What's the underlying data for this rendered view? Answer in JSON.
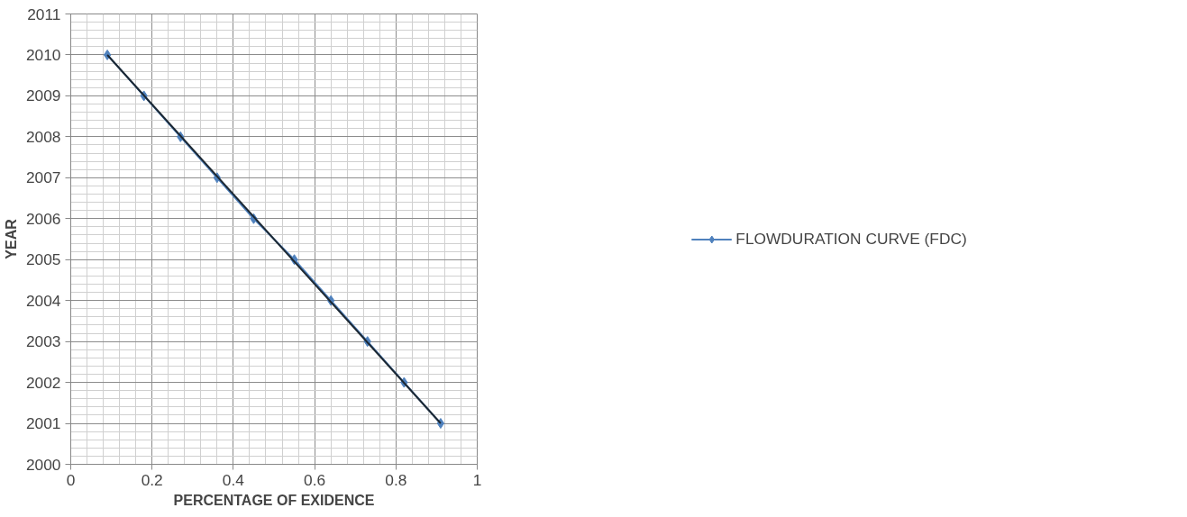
{
  "chart_data": {
    "type": "line",
    "xlabel": "PERCENTAGE OF EXIDENCE",
    "ylabel": "YEAR",
    "x": [
      0.09,
      0.18,
      0.27,
      0.36,
      0.45,
      0.55,
      0.64,
      0.73,
      0.82,
      0.91
    ],
    "series": [
      {
        "name": "FLOWDURATION CURVE (FDC)",
        "color": "#4f81bd",
        "values": [
          2010,
          2009,
          2008,
          2007,
          2006,
          2005,
          2004,
          2003,
          2002,
          2001
        ],
        "marker": "diamond"
      },
      {
        "color": "#1c2833",
        "x": [
          0.09,
          0.91
        ],
        "values": [
          2010,
          2001
        ],
        "marker": "none"
      }
    ],
    "xlim": [
      0,
      1
    ],
    "xticks": [
      0,
      0.2,
      0.4,
      0.6,
      0.8,
      1
    ],
    "ylim": [
      2000,
      2011
    ],
    "yticks": [
      2000,
      2001,
      2002,
      2003,
      2004,
      2005,
      2006,
      2007,
      2008,
      2009,
      2010,
      2011
    ],
    "grid": true,
    "legend": "right"
  }
}
